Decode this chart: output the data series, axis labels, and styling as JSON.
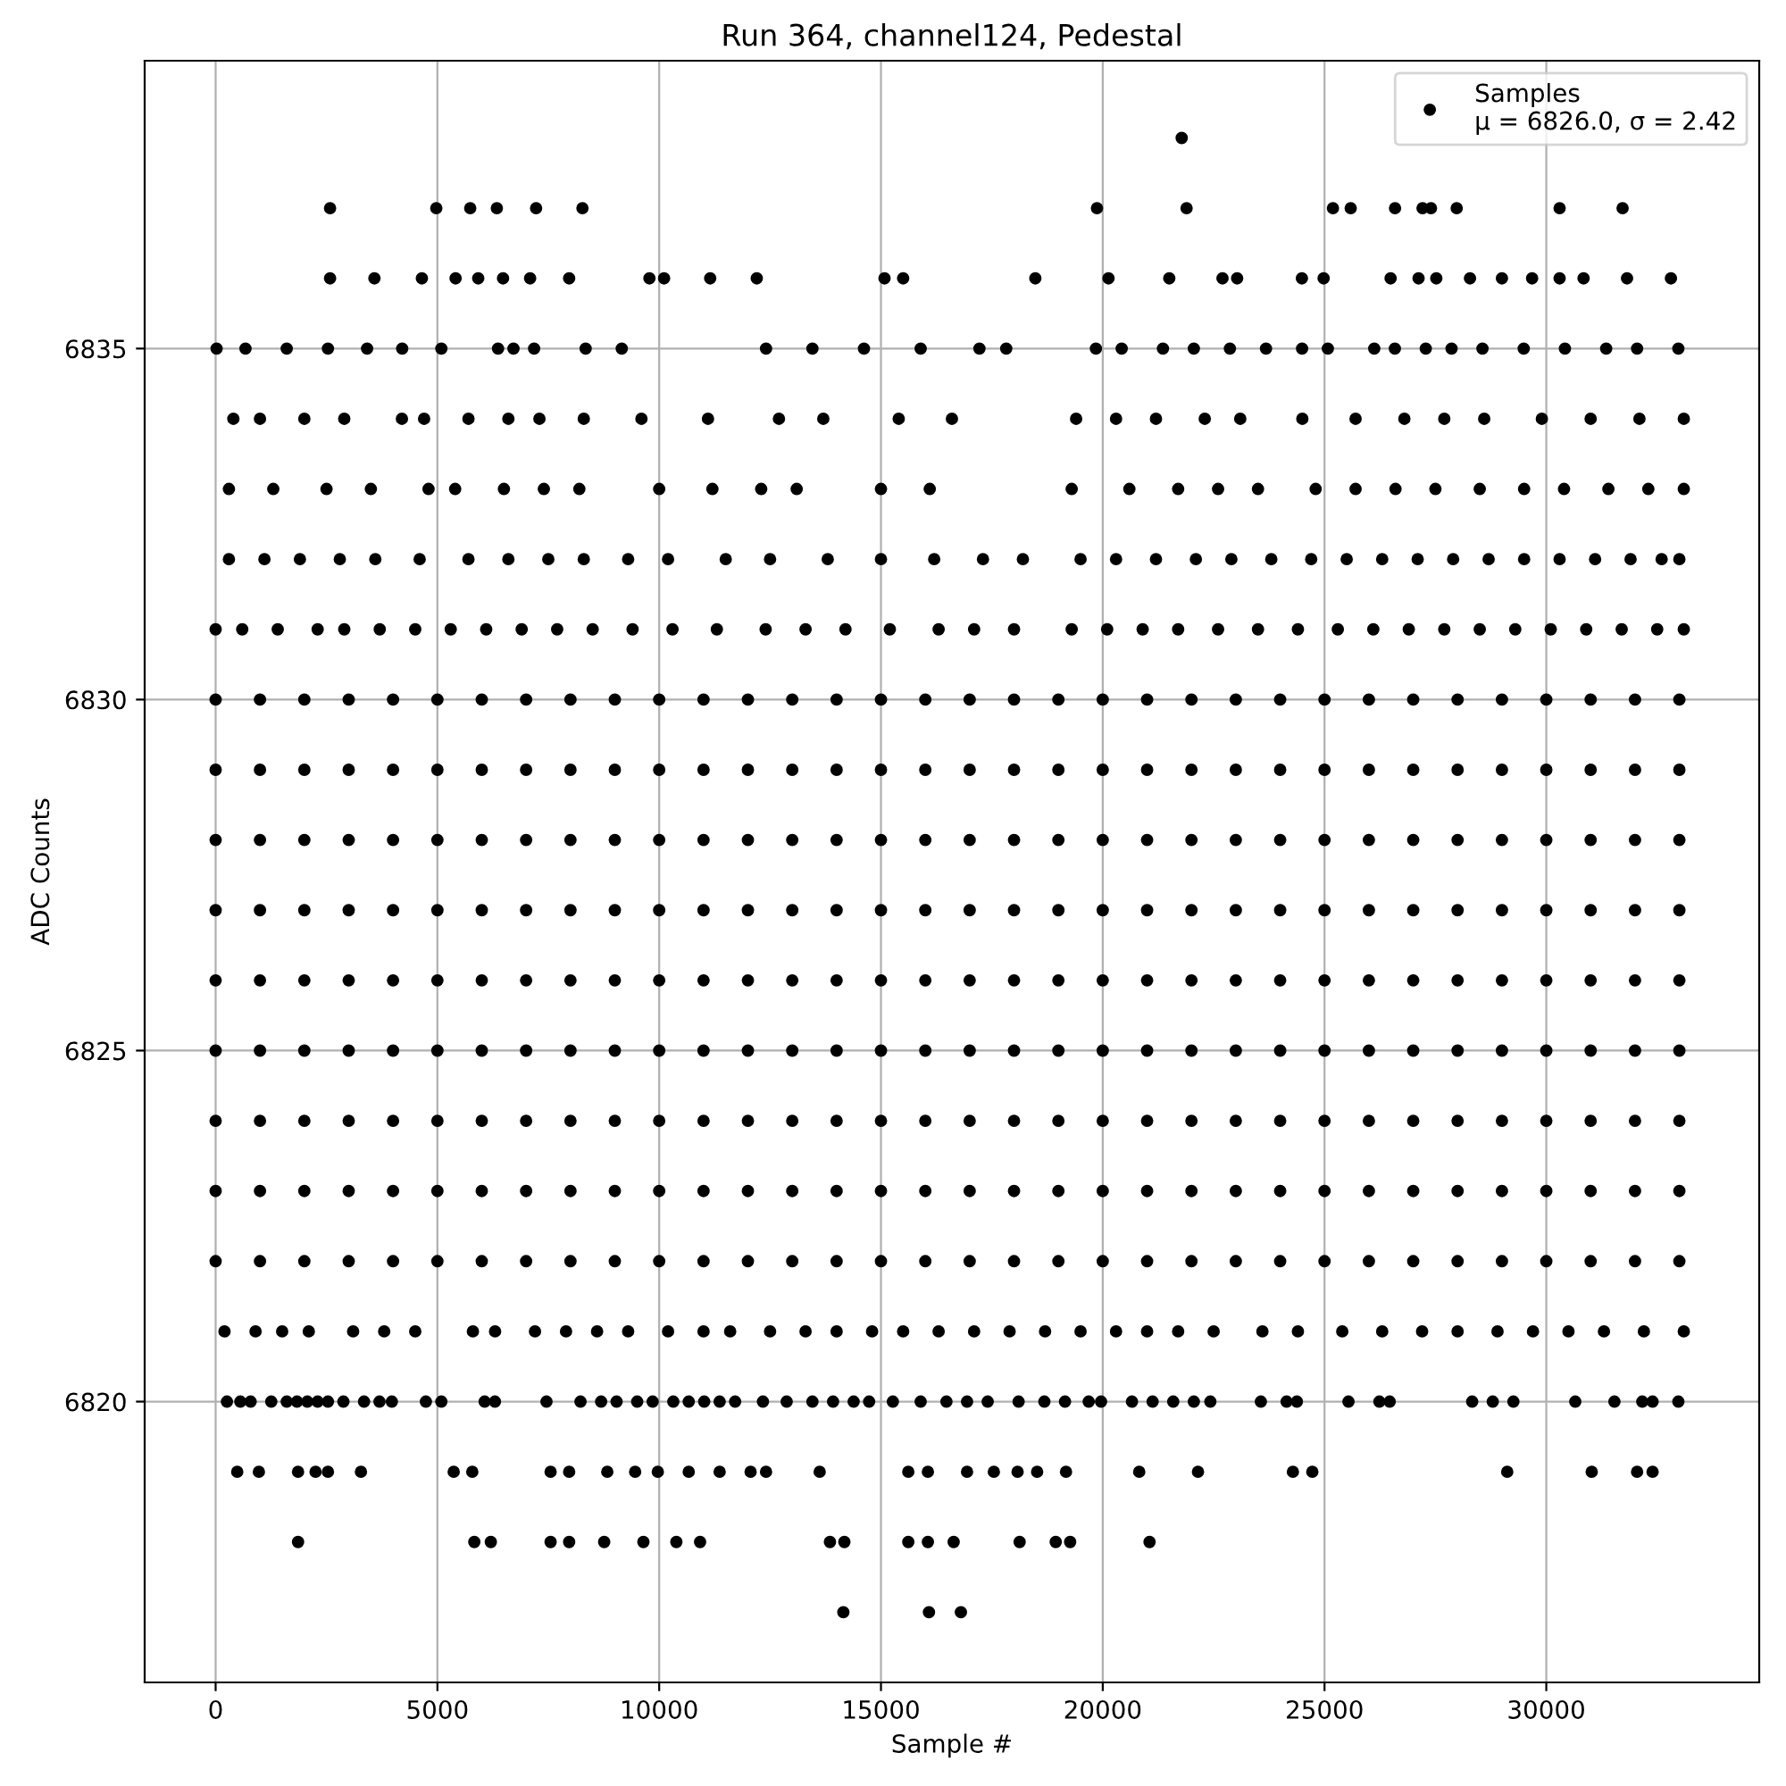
{
  "chart_data": {
    "type": "scatter",
    "title": "Run 364, channel124, Pedestal",
    "xlabel": "Sample #",
    "ylabel": "ADC Counts",
    "xlim": [
      -1600,
      34800
    ],
    "xticks": [
      0,
      5000,
      10000,
      15000,
      20000,
      25000,
      30000
    ],
    "ylim": [
      6816,
      6839.1
    ],
    "yticks": [
      6820,
      6825,
      6830,
      6835
    ],
    "grid": true,
    "legend": "top right",
    "marker": "circle",
    "series": [
      {
        "name": "Samples\nμ = 6826.0, σ = 2.42",
        "color": "#000000",
        "x": [
          21780
        ],
        "values": [
          6838
        ]
      },
      {
        "color": "#000000",
        "x": [
          2580,
          4975,
          5740,
          6340,
          7225,
          8270,
          19870,
          21890,
          25190,
          25590,
          26590,
          27210,
          27400,
          27980,
          30300,
          31720
        ],
        "values": [
          6837,
          6837,
          6837,
          6837,
          6837,
          6837,
          6837,
          6837,
          6837,
          6837,
          6837,
          6837,
          6837,
          6837,
          6837,
          6837
        ]
      },
      {
        "color": "#000000",
        "x": [
          2580,
          3580,
          4650,
          5410,
          5920,
          6480,
          7090,
          7970,
          9780,
          10110,
          11150,
          12200,
          15080,
          15500,
          18480,
          20130,
          21500,
          22700,
          23030,
          24490,
          24980,
          26490,
          27120,
          27520,
          28280,
          29000,
          29680,
          30300,
          30840,
          31820,
          32810
        ],
        "values": [
          6836,
          6836,
          6836,
          6836,
          6836,
          6836,
          6836,
          6836,
          6836,
          6836,
          6836,
          6836,
          6836,
          6836,
          6836,
          6836,
          6836,
          6836,
          6836,
          6836,
          6836,
          6836,
          6836,
          6836,
          6836,
          6836,
          6836,
          6836,
          6836,
          6836,
          6836
        ]
      },
      {
        "color": "#000000",
        "x": [
          22,
          673,
          1603,
          2532,
          3415,
          4206,
          5089,
          6367,
          6715,
          7180,
          8342,
          9156,
          12409,
          13455,
          14617,
          15895,
          17220,
          17824,
          19846,
          20427,
          21357,
          22054,
          22867,
          23681,
          24494,
          25075,
          26121,
          26586,
          27283,
          27864,
          28561,
          29491,
          30420,
          31350,
          32047,
          32977
        ],
        "values": [
          6835,
          6835,
          6835,
          6835,
          6835,
          6835,
          6835,
          6835,
          6835,
          6835,
          6835,
          6835,
          6835,
          6835,
          6835,
          6835,
          6835,
          6835,
          6835,
          6835,
          6835,
          6835,
          6835,
          6835,
          6835,
          6835,
          6835,
          6835,
          6835,
          6835,
          6835,
          6835,
          6835,
          6835,
          6835,
          6835
        ]
      },
      {
        "color": "#000000",
        "x": [
          400,
          1000,
          2000,
          2900,
          4200,
          4700,
          5700,
          6600,
          7300,
          8300,
          9600,
          11100,
          12700,
          13700,
          15400,
          16600,
          19400,
          20300,
          21200,
          22300,
          23100,
          24500,
          25700,
          26800,
          27700,
          28600,
          29900,
          31000,
          32100,
          33100
        ],
        "values": [
          6834,
          6834,
          6834,
          6834,
          6834,
          6834,
          6834,
          6834,
          6834,
          6834,
          6834,
          6834,
          6834,
          6834,
          6834,
          6834,
          6834,
          6834,
          6834,
          6834,
          6834,
          6834,
          6834,
          6834,
          6834,
          6834,
          6834,
          6834,
          6834,
          6834
        ]
      },
      {
        "color": "#000000",
        "x": [
          300,
          1300,
          2500,
          3500,
          4800,
          5400,
          6500,
          7400,
          8200,
          10000,
          11200,
          12300,
          13100,
          15000,
          16100,
          19300,
          20600,
          21700,
          22600,
          23500,
          24800,
          25700,
          26600,
          27500,
          28500,
          29500,
          30400,
          31400,
          32300,
          33100
        ],
        "values": [
          6833,
          6833,
          6833,
          6833,
          6833,
          6833,
          6833,
          6833,
          6833,
          6833,
          6833,
          6833,
          6833,
          6833,
          6833,
          6833,
          6833,
          6833,
          6833,
          6833,
          6833,
          6833,
          6833,
          6833,
          6833,
          6833,
          6833,
          6833,
          6833,
          6833
        ]
      },
      {
        "color": "#000000",
        "x": [
          300,
          1100,
          1900,
          2800,
          3600,
          4600,
          5700,
          6600,
          7500,
          8300,
          9300,
          10200,
          11500,
          12500,
          13800,
          15000,
          16200,
          17300,
          18200,
          19500,
          20300,
          21200,
          22100,
          22900,
          23800,
          24700,
          25500,
          26300,
          27100,
          27900,
          28700,
          29500,
          30300,
          31100,
          31900,
          32600,
          33000
        ],
        "values": [
          6832,
          6832,
          6832,
          6832,
          6832,
          6832,
          6832,
          6832,
          6832,
          6832,
          6832,
          6832,
          6832,
          6832,
          6832,
          6832,
          6832,
          6832,
          6832,
          6832,
          6832,
          6832,
          6832,
          6832,
          6832,
          6832,
          6832,
          6832,
          6832,
          6832,
          6832,
          6832,
          6832,
          6832,
          6832,
          6832,
          6832
        ]
      },
      {
        "color": "#000000",
        "x": [
          0,
          600,
          1400,
          2300,
          2900,
          3700,
          4500,
          5300,
          6100,
          6900,
          7700,
          8500,
          9400,
          10300,
          11300,
          12400,
          13300,
          14200,
          15200,
          16300,
          17100,
          18000,
          19300,
          20100,
          20900,
          21700,
          22600,
          23500,
          24400,
          25300,
          26100,
          26900,
          27700,
          28500,
          29300,
          30100,
          30900,
          31700,
          32500,
          33100
        ],
        "values": [
          6831,
          6831,
          6831,
          6831,
          6831,
          6831,
          6831,
          6831,
          6831,
          6831,
          6831,
          6831,
          6831,
          6831,
          6831,
          6831,
          6831,
          6831,
          6831,
          6831,
          6831,
          6831,
          6831,
          6831,
          6831,
          6831,
          6831,
          6831,
          6831,
          6831,
          6831,
          6831,
          6831,
          6831,
          6831,
          6831,
          6831,
          6831,
          6831,
          6831
        ]
      },
      {
        "color": "#000000",
        "x": [
          0,
          1000,
          2000,
          3000,
          4000,
          5000,
          6000,
          7000,
          8000,
          9000,
          10000,
          11000,
          12000,
          13000,
          14000,
          15000,
          16000,
          17000,
          18000,
          19000,
          20000,
          21000,
          22000,
          23000,
          24000,
          25000,
          26000,
          27000,
          28000,
          29000,
          30000,
          31000,
          32000,
          33000
        ],
        "values": [
          6830,
          6830,
          6830,
          6830,
          6830,
          6830,
          6830,
          6830,
          6830,
          6830,
          6830,
          6830,
          6830,
          6830,
          6830,
          6830,
          6830,
          6830,
          6830,
          6830,
          6830,
          6830,
          6830,
          6830,
          6830,
          6830,
          6830,
          6830,
          6830,
          6830,
          6830,
          6830,
          6830,
          6830
        ]
      },
      {
        "color": "#000000",
        "x": [
          0,
          1000,
          2000,
          3000,
          4000,
          5000,
          6000,
          7000,
          8000,
          9000,
          10000,
          11000,
          12000,
          13000,
          14000,
          15000,
          16000,
          17000,
          18000,
          19000,
          20000,
          21000,
          22000,
          23000,
          24000,
          25000,
          26000,
          27000,
          28000,
          29000,
          30000,
          31000,
          32000,
          33000
        ],
        "values": [
          6829,
          6829,
          6829,
          6829,
          6829,
          6829,
          6829,
          6829,
          6829,
          6829,
          6829,
          6829,
          6829,
          6829,
          6829,
          6829,
          6829,
          6829,
          6829,
          6829,
          6829,
          6829,
          6829,
          6829,
          6829,
          6829,
          6829,
          6829,
          6829,
          6829,
          6829,
          6829,
          6829,
          6829
        ]
      },
      {
        "color": "#000000",
        "x": [
          0,
          1000,
          2000,
          3000,
          4000,
          5000,
          6000,
          7000,
          8000,
          9000,
          10000,
          11000,
          12000,
          13000,
          14000,
          15000,
          16000,
          17000,
          18000,
          19000,
          20000,
          21000,
          22000,
          23000,
          24000,
          25000,
          26000,
          27000,
          28000,
          29000,
          30000,
          31000,
          32000,
          33000
        ],
        "values": [
          6828,
          6828,
          6828,
          6828,
          6828,
          6828,
          6828,
          6828,
          6828,
          6828,
          6828,
          6828,
          6828,
          6828,
          6828,
          6828,
          6828,
          6828,
          6828,
          6828,
          6828,
          6828,
          6828,
          6828,
          6828,
          6828,
          6828,
          6828,
          6828,
          6828,
          6828,
          6828,
          6828,
          6828
        ]
      },
      {
        "color": "#000000",
        "x": [
          0,
          1000,
          2000,
          3000,
          4000,
          5000,
          6000,
          7000,
          8000,
          9000,
          10000,
          11000,
          12000,
          13000,
          14000,
          15000,
          16000,
          17000,
          18000,
          19000,
          20000,
          21000,
          22000,
          23000,
          24000,
          25000,
          26000,
          27000,
          28000,
          29000,
          30000,
          31000,
          32000,
          33000
        ],
        "values": [
          6827,
          6827,
          6827,
          6827,
          6827,
          6827,
          6827,
          6827,
          6827,
          6827,
          6827,
          6827,
          6827,
          6827,
          6827,
          6827,
          6827,
          6827,
          6827,
          6827,
          6827,
          6827,
          6827,
          6827,
          6827,
          6827,
          6827,
          6827,
          6827,
          6827,
          6827,
          6827,
          6827,
          6827
        ]
      },
      {
        "color": "#000000",
        "x": [
          0,
          1000,
          2000,
          3000,
          4000,
          5000,
          6000,
          7000,
          8000,
          9000,
          10000,
          11000,
          12000,
          13000,
          14000,
          15000,
          16000,
          17000,
          18000,
          19000,
          20000,
          21000,
          22000,
          23000,
          24000,
          25000,
          26000,
          27000,
          28000,
          29000,
          30000,
          31000,
          32000,
          33000
        ],
        "values": [
          6826,
          6826,
          6826,
          6826,
          6826,
          6826,
          6826,
          6826,
          6826,
          6826,
          6826,
          6826,
          6826,
          6826,
          6826,
          6826,
          6826,
          6826,
          6826,
          6826,
          6826,
          6826,
          6826,
          6826,
          6826,
          6826,
          6826,
          6826,
          6826,
          6826,
          6826,
          6826,
          6826,
          6826
        ]
      },
      {
        "color": "#000000",
        "x": [
          0,
          1000,
          2000,
          3000,
          4000,
          5000,
          6000,
          7000,
          8000,
          9000,
          10000,
          11000,
          12000,
          13000,
          14000,
          15000,
          16000,
          17000,
          18000,
          19000,
          20000,
          21000,
          22000,
          23000,
          24000,
          25000,
          26000,
          27000,
          28000,
          29000,
          30000,
          31000,
          32000,
          33000
        ],
        "values": [
          6825,
          6825,
          6825,
          6825,
          6825,
          6825,
          6825,
          6825,
          6825,
          6825,
          6825,
          6825,
          6825,
          6825,
          6825,
          6825,
          6825,
          6825,
          6825,
          6825,
          6825,
          6825,
          6825,
          6825,
          6825,
          6825,
          6825,
          6825,
          6825,
          6825,
          6825,
          6825,
          6825,
          6825
        ]
      },
      {
        "color": "#000000",
        "x": [
          0,
          1000,
          2000,
          3000,
          4000,
          5000,
          6000,
          7000,
          8000,
          9000,
          10000,
          11000,
          12000,
          13000,
          14000,
          15000,
          16000,
          17000,
          18000,
          19000,
          20000,
          21000,
          22000,
          23000,
          24000,
          25000,
          26000,
          27000,
          28000,
          29000,
          30000,
          31000,
          32000,
          33000
        ],
        "values": [
          6824,
          6824,
          6824,
          6824,
          6824,
          6824,
          6824,
          6824,
          6824,
          6824,
          6824,
          6824,
          6824,
          6824,
          6824,
          6824,
          6824,
          6824,
          6824,
          6824,
          6824,
          6824,
          6824,
          6824,
          6824,
          6824,
          6824,
          6824,
          6824,
          6824,
          6824,
          6824,
          6824,
          6824
        ]
      },
      {
        "color": "#000000",
        "x": [
          0,
          1000,
          2000,
          3000,
          4000,
          5000,
          6000,
          7000,
          8000,
          9000,
          10000,
          11000,
          12000,
          13000,
          14000,
          15000,
          16000,
          17000,
          18000,
          19000,
          20000,
          21000,
          22000,
          23000,
          24000,
          25000,
          26000,
          27000,
          28000,
          29000,
          30000,
          31000,
          32000,
          33000
        ],
        "values": [
          6823,
          6823,
          6823,
          6823,
          6823,
          6823,
          6823,
          6823,
          6823,
          6823,
          6823,
          6823,
          6823,
          6823,
          6823,
          6823,
          6823,
          6823,
          6823,
          6823,
          6823,
          6823,
          6823,
          6823,
          6823,
          6823,
          6823,
          6823,
          6823,
          6823,
          6823,
          6823,
          6823,
          6823
        ]
      },
      {
        "color": "#000000",
        "x": [
          0,
          1000,
          2000,
          3000,
          4000,
          5000,
          6000,
          7000,
          8000,
          9000,
          10000,
          11000,
          12000,
          13000,
          14000,
          15000,
          16000,
          17000,
          18000,
          19000,
          20000,
          21000,
          22000,
          23000,
          24000,
          25000,
          26000,
          27000,
          28000,
          29000,
          30000,
          31000,
          32000,
          33000
        ],
        "values": [
          6822,
          6822,
          6822,
          6822,
          6822,
          6822,
          6822,
          6822,
          6822,
          6822,
          6822,
          6822,
          6822,
          6822,
          6822,
          6822,
          6822,
          6822,
          6822,
          6822,
          6822,
          6822,
          6822,
          6822,
          6822,
          6822,
          6822,
          6822,
          6822,
          6822,
          6822,
          6822,
          6822,
          6822
        ]
      },
      {
        "color": "#000000",
        "x": [
          200,
          900,
          1500,
          2100,
          3100,
          3800,
          4500,
          5800,
          6300,
          7200,
          7900,
          8600,
          9300,
          10200,
          11000,
          11600,
          12500,
          13300,
          14000,
          14800,
          15500,
          16300,
          17100,
          17900,
          18700,
          19500,
          20300,
          21000,
          21700,
          22500,
          23600,
          24400,
          25400,
          26300,
          27200,
          28000,
          28900,
          29700,
          30500,
          31300,
          32200,
          33100
        ],
        "values": [
          6821,
          6821,
          6821,
          6821,
          6821,
          6821,
          6821,
          6821,
          6821,
          6821,
          6821,
          6821,
          6821,
          6821,
          6821,
          6821,
          6821,
          6821,
          6821,
          6821,
          6821,
          6821,
          6821,
          6821,
          6821,
          6821,
          6821,
          6821,
          6821,
          6821,
          6821,
          6821,
          6821,
          6821,
          6821,
          6821,
          6821,
          6821,
          6821,
          6821,
          6821,
          6821
        ]
      },
      {
        "color": "#000000",
        "x": [
          255,
          557,
          789,
          1254,
          1603,
          1835,
          2067,
          2300,
          2532,
          2881,
          3346,
          3694,
          3973,
          4740,
          5089,
          6065,
          6297,
          7459,
          8226,
          8691,
          9039,
          9504,
          9853,
          10318,
          10666,
          11015,
          11363,
          11712,
          12339,
          12874,
          13455,
          13920,
          14384,
          14733,
          15268,
          15895,
          16476,
          16941,
          17406,
          18103,
          18684,
          19149,
          19683,
          19962,
          20659,
          21124,
          21589,
          22054,
          22426,
          23565,
          24145,
          24377,
          25540,
          26237,
          26469,
          28329,
          28793,
          29258,
          30653,
          31536,
          32164,
          32396,
          32977
        ],
        "values": [
          6820,
          6820,
          6820,
          6820,
          6820,
          6820,
          6820,
          6820,
          6820,
          6820,
          6820,
          6820,
          6820,
          6820,
          6820,
          6820,
          6820,
          6820,
          6820,
          6820,
          6820,
          6820,
          6820,
          6820,
          6820,
          6820,
          6820,
          6820,
          6820,
          6820,
          6820,
          6820,
          6820,
          6820,
          6820,
          6820,
          6820,
          6820,
          6820,
          6820,
          6820,
          6820,
          6820,
          6820,
          6820,
          6820,
          6820,
          6820,
          6820,
          6820,
          6820,
          6820,
          6820,
          6820,
          6820,
          6820,
          6820,
          6820,
          6820,
          6820,
          6820,
          6820,
          6820
        ]
      },
      {
        "color": "#000000",
        "x": [
          487,
          975,
          1858,
          2253,
          2532,
          3276,
          5367,
          5786,
          7552,
          7970,
          8830,
          9458,
          9969,
          10666,
          11363,
          12061,
          12409,
          13618,
          15616,
          16058,
          16941,
          17545,
          18080,
          18521,
          19172,
          20822,
          22147,
          24287,
          24725,
          29119,
          31024,
          32047,
          32396
        ],
        "values": [
          6819,
          6819,
          6819,
          6819,
          6819,
          6819,
          6819,
          6819,
          6819,
          6819,
          6819,
          6819,
          6819,
          6819,
          6819,
          6819,
          6819,
          6819,
          6819,
          6819,
          6819,
          6819,
          6819,
          6819,
          6819,
          6819,
          6819,
          6819,
          6819,
          6819,
          6819,
          6819,
          6819
        ]
      },
      {
        "color": "#000000",
        "x": [
          1858,
          5832,
          6204,
          7552,
          7970,
          8760,
          9644,
          10387,
          10922,
          13850,
          14175,
          15616,
          16058,
          16639,
          18126,
          18940,
          19265,
          21055
        ],
        "values": [
          6818,
          6818,
          6818,
          6818,
          6818,
          6818,
          6818,
          6818,
          6818,
          6818,
          6818,
          6818,
          6818,
          6818,
          6818,
          6818,
          6818,
          6818
        ]
      },
      {
        "color": "#000000",
        "x": [
          14152,
          16082,
          16802
        ],
        "values": [
          6817,
          6817,
          6817
        ]
      }
    ]
  }
}
